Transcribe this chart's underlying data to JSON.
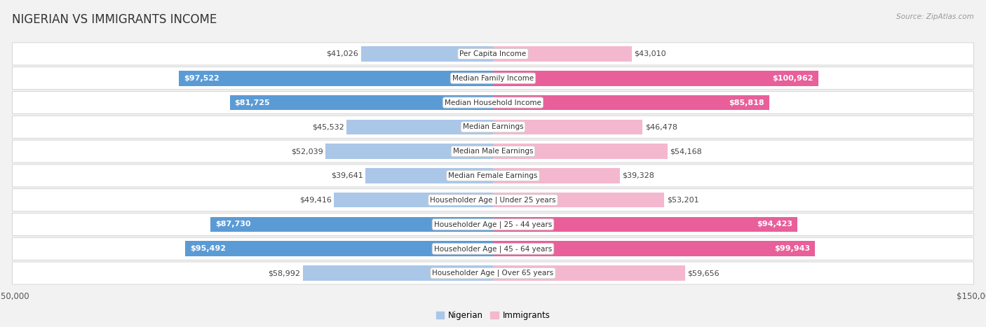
{
  "title": "NIGERIAN VS IMMIGRANTS INCOME",
  "source": "Source: ZipAtlas.com",
  "categories": [
    "Per Capita Income",
    "Median Family Income",
    "Median Household Income",
    "Median Earnings",
    "Median Male Earnings",
    "Median Female Earnings",
    "Householder Age | Under 25 years",
    "Householder Age | 25 - 44 years",
    "Householder Age | 45 - 64 years",
    "Householder Age | Over 65 years"
  ],
  "nigerian_values": [
    41026,
    97522,
    81725,
    45532,
    52039,
    39641,
    49416,
    87730,
    95492,
    58992
  ],
  "immigrant_values": [
    43010,
    100962,
    85818,
    46478,
    54168,
    39328,
    53201,
    94423,
    99943,
    59656
  ],
  "nigerian_labels": [
    "$41,026",
    "$97,522",
    "$81,725",
    "$45,532",
    "$52,039",
    "$39,641",
    "$49,416",
    "$87,730",
    "$95,492",
    "$58,992"
  ],
  "immigrant_labels": [
    "$43,010",
    "$100,962",
    "$85,818",
    "$46,478",
    "$54,168",
    "$39,328",
    "$53,201",
    "$94,423",
    "$99,943",
    "$59,656"
  ],
  "nigerian_color_light": "#aac7e8",
  "nigerian_color_dark": "#5b9bd5",
  "immigrant_color_light": "#f4b8ce",
  "immigrant_color_dark": "#e85f9a",
  "max_value": 150000,
  "title_fontsize": 12,
  "label_fontsize": 8,
  "category_fontsize": 7.5,
  "legend_fontsize": 8.5,
  "nigerian_high_threshold": 75000,
  "immigrant_high_threshold": 85000,
  "bg_color": "#f2f2f2",
  "row_color": "#ffffff",
  "row_alt_color": "#f7f7f7"
}
